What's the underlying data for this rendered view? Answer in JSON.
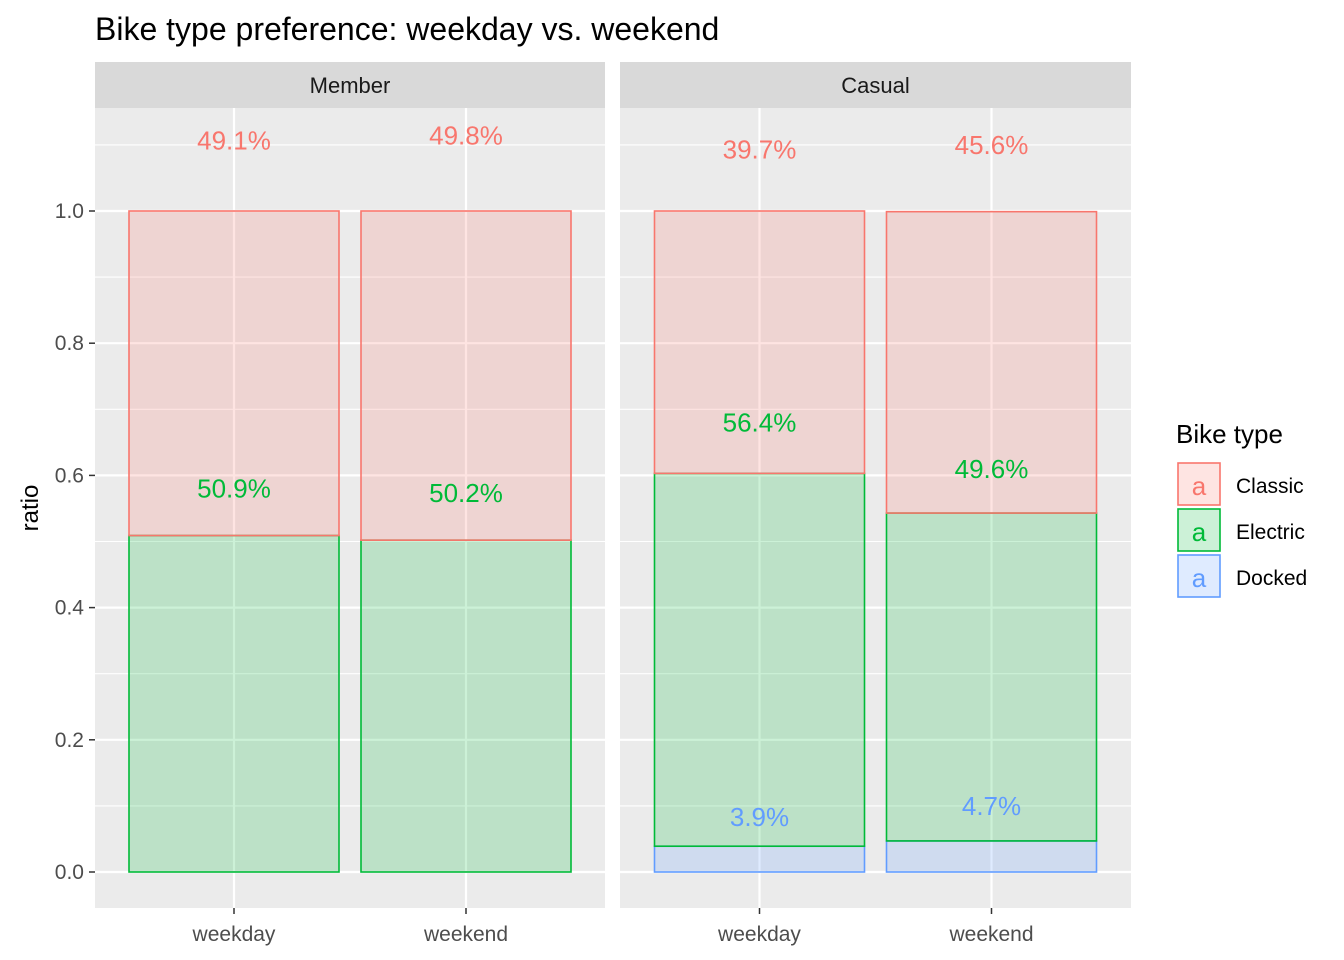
{
  "chart_data": {
    "type": "bar",
    "stacked": true,
    "title": "Bike type preference: weekday vs. weekend",
    "ylabel": "ratio",
    "xlabel": "",
    "ylim": [
      0,
      1.0
    ],
    "y_ticks": [
      0.0,
      0.2,
      0.4,
      0.6,
      0.8,
      1.0
    ],
    "y_tick_labels": [
      "0.0",
      "0.2",
      "0.4",
      "0.6",
      "0.8",
      "1.0"
    ],
    "grid": true,
    "legend": {
      "title": "Bike type",
      "position": "right",
      "entries": [
        {
          "name": "Classic",
          "color": "#F8766D"
        },
        {
          "name": "Electric",
          "color": "#00BA38"
        },
        {
          "name": "Docked",
          "color": "#619CFF"
        }
      ]
    },
    "stack_order": [
      "Docked",
      "Electric",
      "Classic"
    ],
    "facets": [
      {
        "label": "Member",
        "categories": [
          "weekday",
          "weekend"
        ],
        "series": [
          {
            "name": "Classic",
            "values": [
              0.491,
              0.498
            ],
            "labels": [
              "49.1%",
              "49.8%"
            ],
            "label_y": [
              1.107,
              1.114
            ]
          },
          {
            "name": "Electric",
            "values": [
              0.509,
              0.502
            ],
            "labels": [
              "50.9%",
              "50.2%"
            ],
            "label_y": [
              0.58,
              0.573
            ]
          }
        ]
      },
      {
        "label": "Casual",
        "categories": [
          "weekday",
          "weekend"
        ],
        "series": [
          {
            "name": "Classic",
            "values": [
              0.397,
              0.456
            ],
            "labels": [
              "39.7%",
              "45.6%"
            ],
            "label_y": [
              1.093,
              1.1
            ]
          },
          {
            "name": "Electric",
            "values": [
              0.564,
              0.496
            ],
            "labels": [
              "56.4%",
              "49.6%"
            ],
            "label_y": [
              0.68,
              0.61
            ]
          },
          {
            "name": "Docked",
            "values": [
              0.039,
              0.047
            ],
            "labels": [
              "3.9%",
              "4.7%"
            ],
            "label_y": [
              0.083,
              0.1
            ]
          }
        ]
      }
    ],
    "style": {
      "panel_bg": "#EBEBEB",
      "strip_bg": "#D9D9D9",
      "grid_color": "#FFFFFF",
      "fill_alpha": 0.2
    }
  }
}
